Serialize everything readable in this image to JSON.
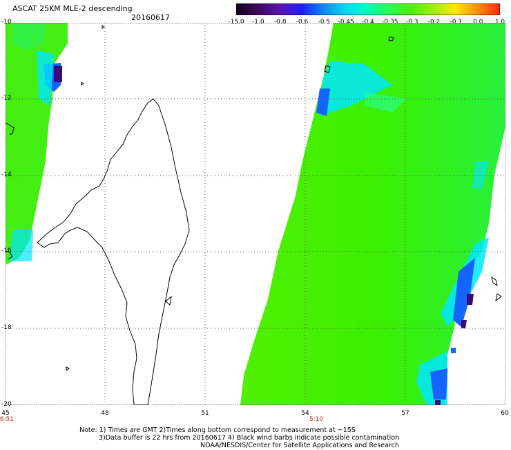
{
  "header": {
    "title": "ASCAT 25KM MLE-2 descending",
    "date": "20160617"
  },
  "colorbar": {
    "labels": [
      "-15.0",
      "-1.0",
      "-0.8",
      "-0.6",
      "-0.5",
      "-0.45",
      "-0.4",
      "-0.35",
      "-0.3",
      "-0.2",
      "-0.1",
      "0.0",
      "1.0"
    ],
    "colors": [
      "#140014",
      "#3c0a5a",
      "#5a14b4",
      "#1e1eff",
      "#0a8cff",
      "#00dcff",
      "#00ffb4",
      "#28ff50",
      "#50f000",
      "#a0f000",
      "#ffe600",
      "#ff8c00",
      "#ff2800"
    ]
  },
  "map": {
    "lon_range": [
      45,
      60
    ],
    "lat_range": [
      -20,
      -10
    ],
    "lon_ticks": [
      "45",
      "48",
      "51",
      "54",
      "57",
      "60"
    ],
    "lat_ticks": [
      "-10",
      "-12",
      "-14",
      "-16",
      "-18",
      "-20"
    ],
    "time_labels": [
      {
        "lon": 45,
        "text": "6:51"
      },
      {
        "lon": 54,
        "text": "5:10"
      }
    ],
    "colors": {
      "land_outline": "#000000",
      "grid": "#555555",
      "swath_main": "#3cf000",
      "swath_cyan": "#00e6ff",
      "swath_blue": "#1464ff",
      "swath_dark": "#3c0a78"
    }
  },
  "footer": {
    "line1": "Note: 1) Times are GMT 2)Times along bottom correspond to measurement at ~15S",
    "line2": "3)Data buffer is 22 hrs from 20160617 4) Black wind barbs indicate possible contamination",
    "line3": "NOAA/NESDIS/Center for Satellite Applications and Research"
  }
}
